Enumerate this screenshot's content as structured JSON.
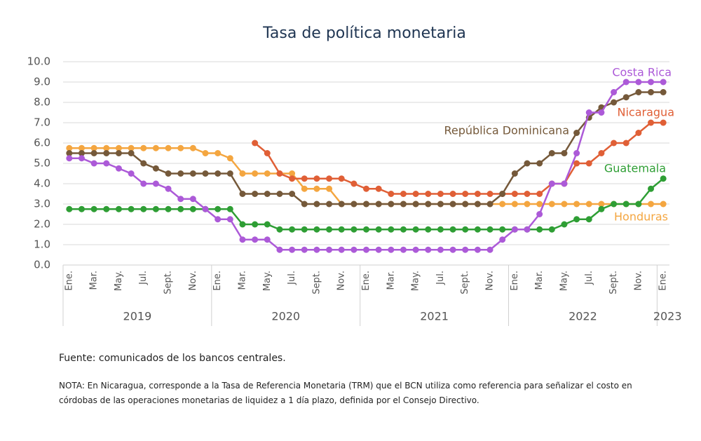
{
  "chart_data": {
    "type": "line",
    "title": "Tasa de política monetaria",
    "categories": [
      "Ene.",
      null,
      "Mar.",
      null,
      "May.",
      null,
      "Jul.",
      null,
      "Sept.",
      null,
      "Nov.",
      null,
      "Ene.",
      null,
      "Mar.",
      null,
      "May.",
      null,
      "Jul.",
      null,
      "Sept.",
      null,
      "Nov.",
      null,
      "Ene.",
      null,
      "Mar.",
      null,
      "May.",
      null,
      "Jul.",
      null,
      "Sept.",
      null,
      "Nov.",
      null,
      "Ene.",
      null,
      "Mar.",
      null,
      "May.",
      null,
      "Jul.",
      null,
      "Sept.",
      null,
      "Nov.",
      null,
      "Ene."
    ],
    "years": [
      "2019",
      "2020",
      "2021",
      "2022",
      "2023"
    ],
    "ylim": [
      0,
      10
    ],
    "yticks": [
      {
        "value": 0,
        "label": "0.0"
      },
      {
        "value": 1,
        "label": "1.0"
      },
      {
        "value": 2,
        "label": "2.0"
      },
      {
        "value": 3,
        "label": "3.0"
      },
      {
        "value": 4,
        "label": "4.0"
      },
      {
        "value": 5,
        "label": "5.0"
      },
      {
        "value": 6,
        "label": "6.0"
      },
      {
        "value": 7,
        "label": "7.0"
      },
      {
        "value": 8,
        "label": "8.0"
      },
      {
        "value": 9,
        "label": "9.0"
      },
      {
        "value": 10,
        "label": "10.0"
      }
    ],
    "grid": true,
    "series": [
      {
        "name": "Honduras",
        "color": "#f4a640",
        "values": [
          5.75,
          5.75,
          5.75,
          5.75,
          5.75,
          5.75,
          5.75,
          5.75,
          5.75,
          5.75,
          5.75,
          5.5,
          5.5,
          5.25,
          4.5,
          4.5,
          4.5,
          4.5,
          4.5,
          3.75,
          3.75,
          3.75,
          3,
          3,
          3,
          3,
          3,
          3,
          3,
          3,
          3,
          3,
          3,
          3,
          3,
          3,
          3,
          3,
          3,
          3,
          3,
          3,
          3,
          3,
          3,
          3,
          3,
          3,
          3
        ]
      },
      {
        "name": "Guatemala",
        "color": "#2e9e34",
        "values": [
          2.75,
          2.75,
          2.75,
          2.75,
          2.75,
          2.75,
          2.75,
          2.75,
          2.75,
          2.75,
          2.75,
          2.75,
          2.75,
          2.75,
          2,
          2,
          2,
          1.75,
          1.75,
          1.75,
          1.75,
          1.75,
          1.75,
          1.75,
          1.75,
          1.75,
          1.75,
          1.75,
          1.75,
          1.75,
          1.75,
          1.75,
          1.75,
          1.75,
          1.75,
          1.75,
          1.75,
          1.75,
          1.75,
          1.75,
          2,
          2.25,
          2.25,
          2.75,
          3,
          3,
          3,
          3.75,
          4.25
        ]
      },
      {
        "name": "Nicaragua",
        "color": "#e05f36",
        "values": [
          null,
          null,
          null,
          null,
          null,
          null,
          null,
          null,
          null,
          null,
          null,
          null,
          null,
          null,
          null,
          6,
          5.5,
          4.5,
          4.25,
          4.25,
          4.25,
          4.25,
          4.25,
          4,
          3.75,
          3.75,
          3.5,
          3.5,
          3.5,
          3.5,
          3.5,
          3.5,
          3.5,
          3.5,
          3.5,
          3.5,
          3.5,
          3.5,
          3.5,
          4,
          4,
          5,
          5,
          5.5,
          6,
          6,
          6.5,
          7,
          7
        ]
      },
      {
        "name": "República Dominicana",
        "color": "#75593a",
        "values": [
          5.5,
          5.5,
          5.5,
          5.5,
          5.5,
          5.5,
          5,
          4.75,
          4.5,
          4.5,
          4.5,
          4.5,
          4.5,
          4.5,
          3.5,
          3.5,
          3.5,
          3.5,
          3.5,
          3,
          3,
          3,
          3,
          3,
          3,
          3,
          3,
          3,
          3,
          3,
          3,
          3,
          3,
          3,
          3,
          3.5,
          4.5,
          5,
          5,
          5.5,
          5.5,
          6.5,
          7.25,
          7.75,
          8,
          8.25,
          8.5,
          8.5,
          8.5
        ]
      },
      {
        "name": "Costa Rica",
        "color": "#ac5ad8",
        "values": [
          5.25,
          5.25,
          5,
          5,
          4.75,
          4.5,
          4,
          4,
          3.75,
          3.25,
          3.25,
          2.75,
          2.25,
          2.25,
          1.25,
          1.25,
          1.25,
          0.75,
          0.75,
          0.75,
          0.75,
          0.75,
          0.75,
          0.75,
          0.75,
          0.75,
          0.75,
          0.75,
          0.75,
          0.75,
          0.75,
          0.75,
          0.75,
          0.75,
          0.75,
          1.25,
          1.75,
          1.75,
          2.5,
          4,
          4,
          5.5,
          7.5,
          7.5,
          8.5,
          9,
          9,
          9,
          9
        ]
      }
    ]
  },
  "footer": {
    "source": "Fuente: comunicados de los bancos centrales.",
    "note": "NOTA: En Nicaragua, corresponde a la Tasa de Referencia Monetaria (TRM) que el BCN utiliza como referencia para señalizar el costo en córdobas de las operaciones monetarias de liquidez a 1 día plazo, definida por el Consejo Directivo."
  }
}
